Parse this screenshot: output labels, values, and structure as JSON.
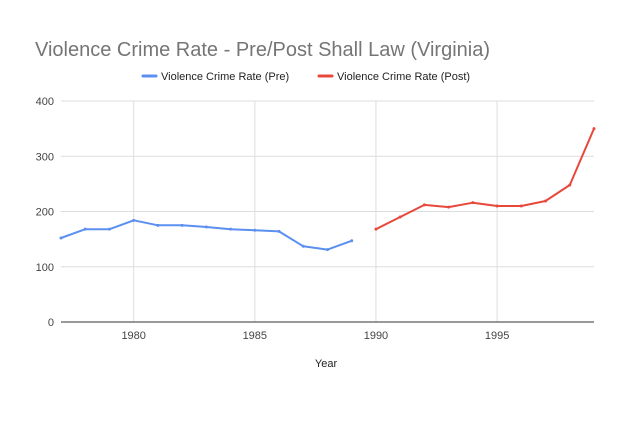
{
  "chart_data": {
    "type": "line",
    "title": "Violence Crime Rate - Pre/Post Shall Law (Virginia)",
    "xlabel": "Year",
    "ylabel": "",
    "xlim": [
      1977,
      1999
    ],
    "ylim": [
      0,
      400
    ],
    "x_ticks": [
      1980,
      1985,
      1990,
      1995
    ],
    "y_ticks": [
      0,
      100,
      200,
      300,
      400
    ],
    "grid": true,
    "legend_position": "top",
    "series": [
      {
        "name": "Violence Crime Rate (Pre)",
        "color": "#5b8ff0",
        "points": [
          {
            "x": 1977,
            "y": 152
          },
          {
            "x": 1978,
            "y": 168
          },
          {
            "x": 1979,
            "y": 168
          },
          {
            "x": 1980,
            "y": 184
          },
          {
            "x": 1981,
            "y": 175
          },
          {
            "x": 1982,
            "y": 175
          },
          {
            "x": 1983,
            "y": 172
          },
          {
            "x": 1984,
            "y": 168
          },
          {
            "x": 1985,
            "y": 166
          },
          {
            "x": 1986,
            "y": 164
          },
          {
            "x": 1987,
            "y": 137
          },
          {
            "x": 1988,
            "y": 131
          },
          {
            "x": 1989,
            "y": 147
          }
        ]
      },
      {
        "name": "Violence Crime Rate (Post)",
        "color": "#e8483b",
        "points": [
          {
            "x": 1990,
            "y": 168
          },
          {
            "x": 1991,
            "y": 190
          },
          {
            "x": 1992,
            "y": 212
          },
          {
            "x": 1993,
            "y": 208
          },
          {
            "x": 1994,
            "y": 216
          },
          {
            "x": 1995,
            "y": 210
          },
          {
            "x": 1996,
            "y": 210
          },
          {
            "x": 1997,
            "y": 219
          },
          {
            "x": 1998,
            "y": 248
          },
          {
            "x": 1999,
            "y": 350
          }
        ]
      }
    ]
  }
}
